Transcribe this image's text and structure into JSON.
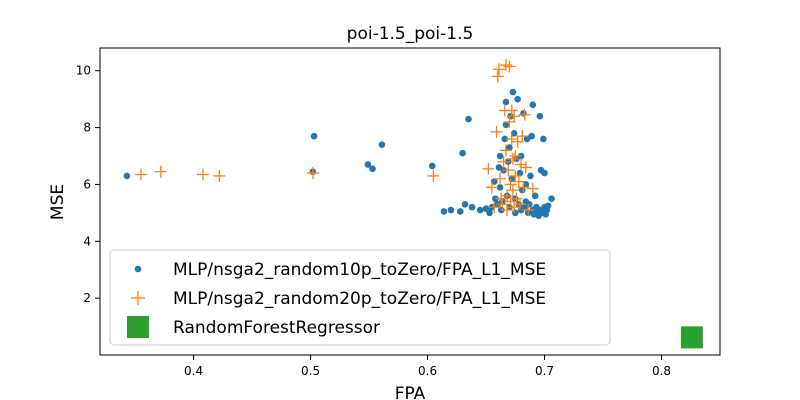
{
  "chart_data": {
    "type": "scatter",
    "title": "poi-1.5_poi-1.5",
    "xlabel": "FPA",
    "ylabel": "MSE",
    "xlim": [
      0.32,
      0.85
    ],
    "ylim": [
      0.0,
      10.8
    ],
    "xticks": [
      0.4,
      0.5,
      0.6,
      0.7,
      0.8
    ],
    "yticks": [
      2,
      4,
      6,
      8,
      10
    ],
    "grid": false,
    "legend_position": "lower-left",
    "series": [
      {
        "name": "MLP/nsga2_random10p_toZero/FPA_L1_MSE",
        "marker": "circle",
        "color": "#1f77b4",
        "points": [
          [
            0.343,
            6.3
          ],
          [
            0.502,
            6.45
          ],
          [
            0.503,
            7.7
          ],
          [
            0.549,
            6.7
          ],
          [
            0.553,
            6.55
          ],
          [
            0.561,
            7.4
          ],
          [
            0.604,
            6.65
          ],
          [
            0.614,
            5.05
          ],
          [
            0.62,
            5.1
          ],
          [
            0.628,
            5.05
          ],
          [
            0.63,
            7.1
          ],
          [
            0.632,
            5.3
          ],
          [
            0.635,
            8.3
          ],
          [
            0.638,
            5.2
          ],
          [
            0.645,
            5.1
          ],
          [
            0.65,
            5.15
          ],
          [
            0.653,
            5.0
          ],
          [
            0.655,
            5.2
          ],
          [
            0.657,
            6.1
          ],
          [
            0.658,
            5.5
          ],
          [
            0.66,
            5.3
          ],
          [
            0.661,
            6.6
          ],
          [
            0.662,
            7.0
          ],
          [
            0.662,
            5.9
          ],
          [
            0.663,
            5.1
          ],
          [
            0.664,
            5.4
          ],
          [
            0.665,
            6.5
          ],
          [
            0.666,
            7.6
          ],
          [
            0.667,
            8.1
          ],
          [
            0.667,
            8.9
          ],
          [
            0.668,
            5.6
          ],
          [
            0.669,
            6.8
          ],
          [
            0.67,
            7.3
          ],
          [
            0.67,
            5.2
          ],
          [
            0.671,
            8.4
          ],
          [
            0.672,
            6.2
          ],
          [
            0.673,
            9.25
          ],
          [
            0.674,
            7.8
          ],
          [
            0.675,
            5.0
          ],
          [
            0.675,
            5.5
          ],
          [
            0.676,
            6.9
          ],
          [
            0.677,
            9.0
          ],
          [
            0.678,
            5.3
          ],
          [
            0.679,
            6.4
          ],
          [
            0.68,
            5.1
          ],
          [
            0.68,
            7.0
          ],
          [
            0.681,
            5.8
          ],
          [
            0.682,
            8.5
          ],
          [
            0.683,
            5.2
          ],
          [
            0.684,
            6.0
          ],
          [
            0.684,
            5.4
          ],
          [
            0.685,
            7.6
          ],
          [
            0.686,
            5.0
          ],
          [
            0.687,
            5.3
          ],
          [
            0.688,
            6.3
          ],
          [
            0.689,
            7.7
          ],
          [
            0.69,
            8.8
          ],
          [
            0.69,
            5.1
          ],
          [
            0.691,
            4.95
          ],
          [
            0.692,
            5.6
          ],
          [
            0.693,
            5.2
          ],
          [
            0.694,
            5.0
          ],
          [
            0.695,
            4.9
          ],
          [
            0.696,
            8.4
          ],
          [
            0.697,
            5.1
          ],
          [
            0.697,
            6.5
          ],
          [
            0.698,
            5.0
          ],
          [
            0.699,
            7.6
          ],
          [
            0.7,
            5.2
          ],
          [
            0.7,
            6.4
          ],
          [
            0.701,
            4.95
          ],
          [
            0.702,
            5.1
          ],
          [
            0.703,
            5.25
          ],
          [
            0.706,
            5.5
          ]
        ]
      },
      {
        "name": "MLP/nsga2_random20p_toZero/FPA_L1_MSE",
        "marker": "plus",
        "color": "#ff7f0e",
        "points": [
          [
            0.355,
            6.35
          ],
          [
            0.372,
            6.45
          ],
          [
            0.408,
            6.35
          ],
          [
            0.422,
            6.3
          ],
          [
            0.502,
            6.4
          ],
          [
            0.605,
            6.3
          ],
          [
            0.652,
            6.55
          ],
          [
            0.655,
            5.9
          ],
          [
            0.657,
            5.2
          ],
          [
            0.659,
            7.85
          ],
          [
            0.66,
            9.8
          ],
          [
            0.661,
            10.05
          ],
          [
            0.662,
            6.2
          ],
          [
            0.663,
            5.5
          ],
          [
            0.664,
            5.3
          ],
          [
            0.665,
            6.8
          ],
          [
            0.666,
            8.6
          ],
          [
            0.667,
            10.2
          ],
          [
            0.667,
            7.2
          ],
          [
            0.668,
            5.6
          ],
          [
            0.668,
            5.1
          ],
          [
            0.669,
            6.5
          ],
          [
            0.67,
            10.15
          ],
          [
            0.67,
            8.2
          ],
          [
            0.671,
            6.0
          ],
          [
            0.671,
            5.4
          ],
          [
            0.672,
            7.6
          ],
          [
            0.672,
            8.6
          ],
          [
            0.673,
            5.8
          ],
          [
            0.673,
            6.9
          ],
          [
            0.674,
            5.2
          ],
          [
            0.674,
            8.4
          ],
          [
            0.675,
            7.0
          ],
          [
            0.675,
            6.3
          ],
          [
            0.676,
            5.5
          ],
          [
            0.677,
            7.5
          ],
          [
            0.678,
            6.1
          ],
          [
            0.679,
            5.3
          ],
          [
            0.68,
            6.7
          ],
          [
            0.681,
            7.7
          ],
          [
            0.682,
            5.9
          ],
          [
            0.683,
            8.45
          ],
          [
            0.684,
            6.6
          ],
          [
            0.686,
            5.1
          ],
          [
            0.69,
            5.85
          ]
        ]
      },
      {
        "name": "RandomForestRegressor",
        "marker": "square",
        "color": "#2ca02c",
        "points": [
          [
            0.826,
            0.62
          ]
        ]
      }
    ]
  }
}
